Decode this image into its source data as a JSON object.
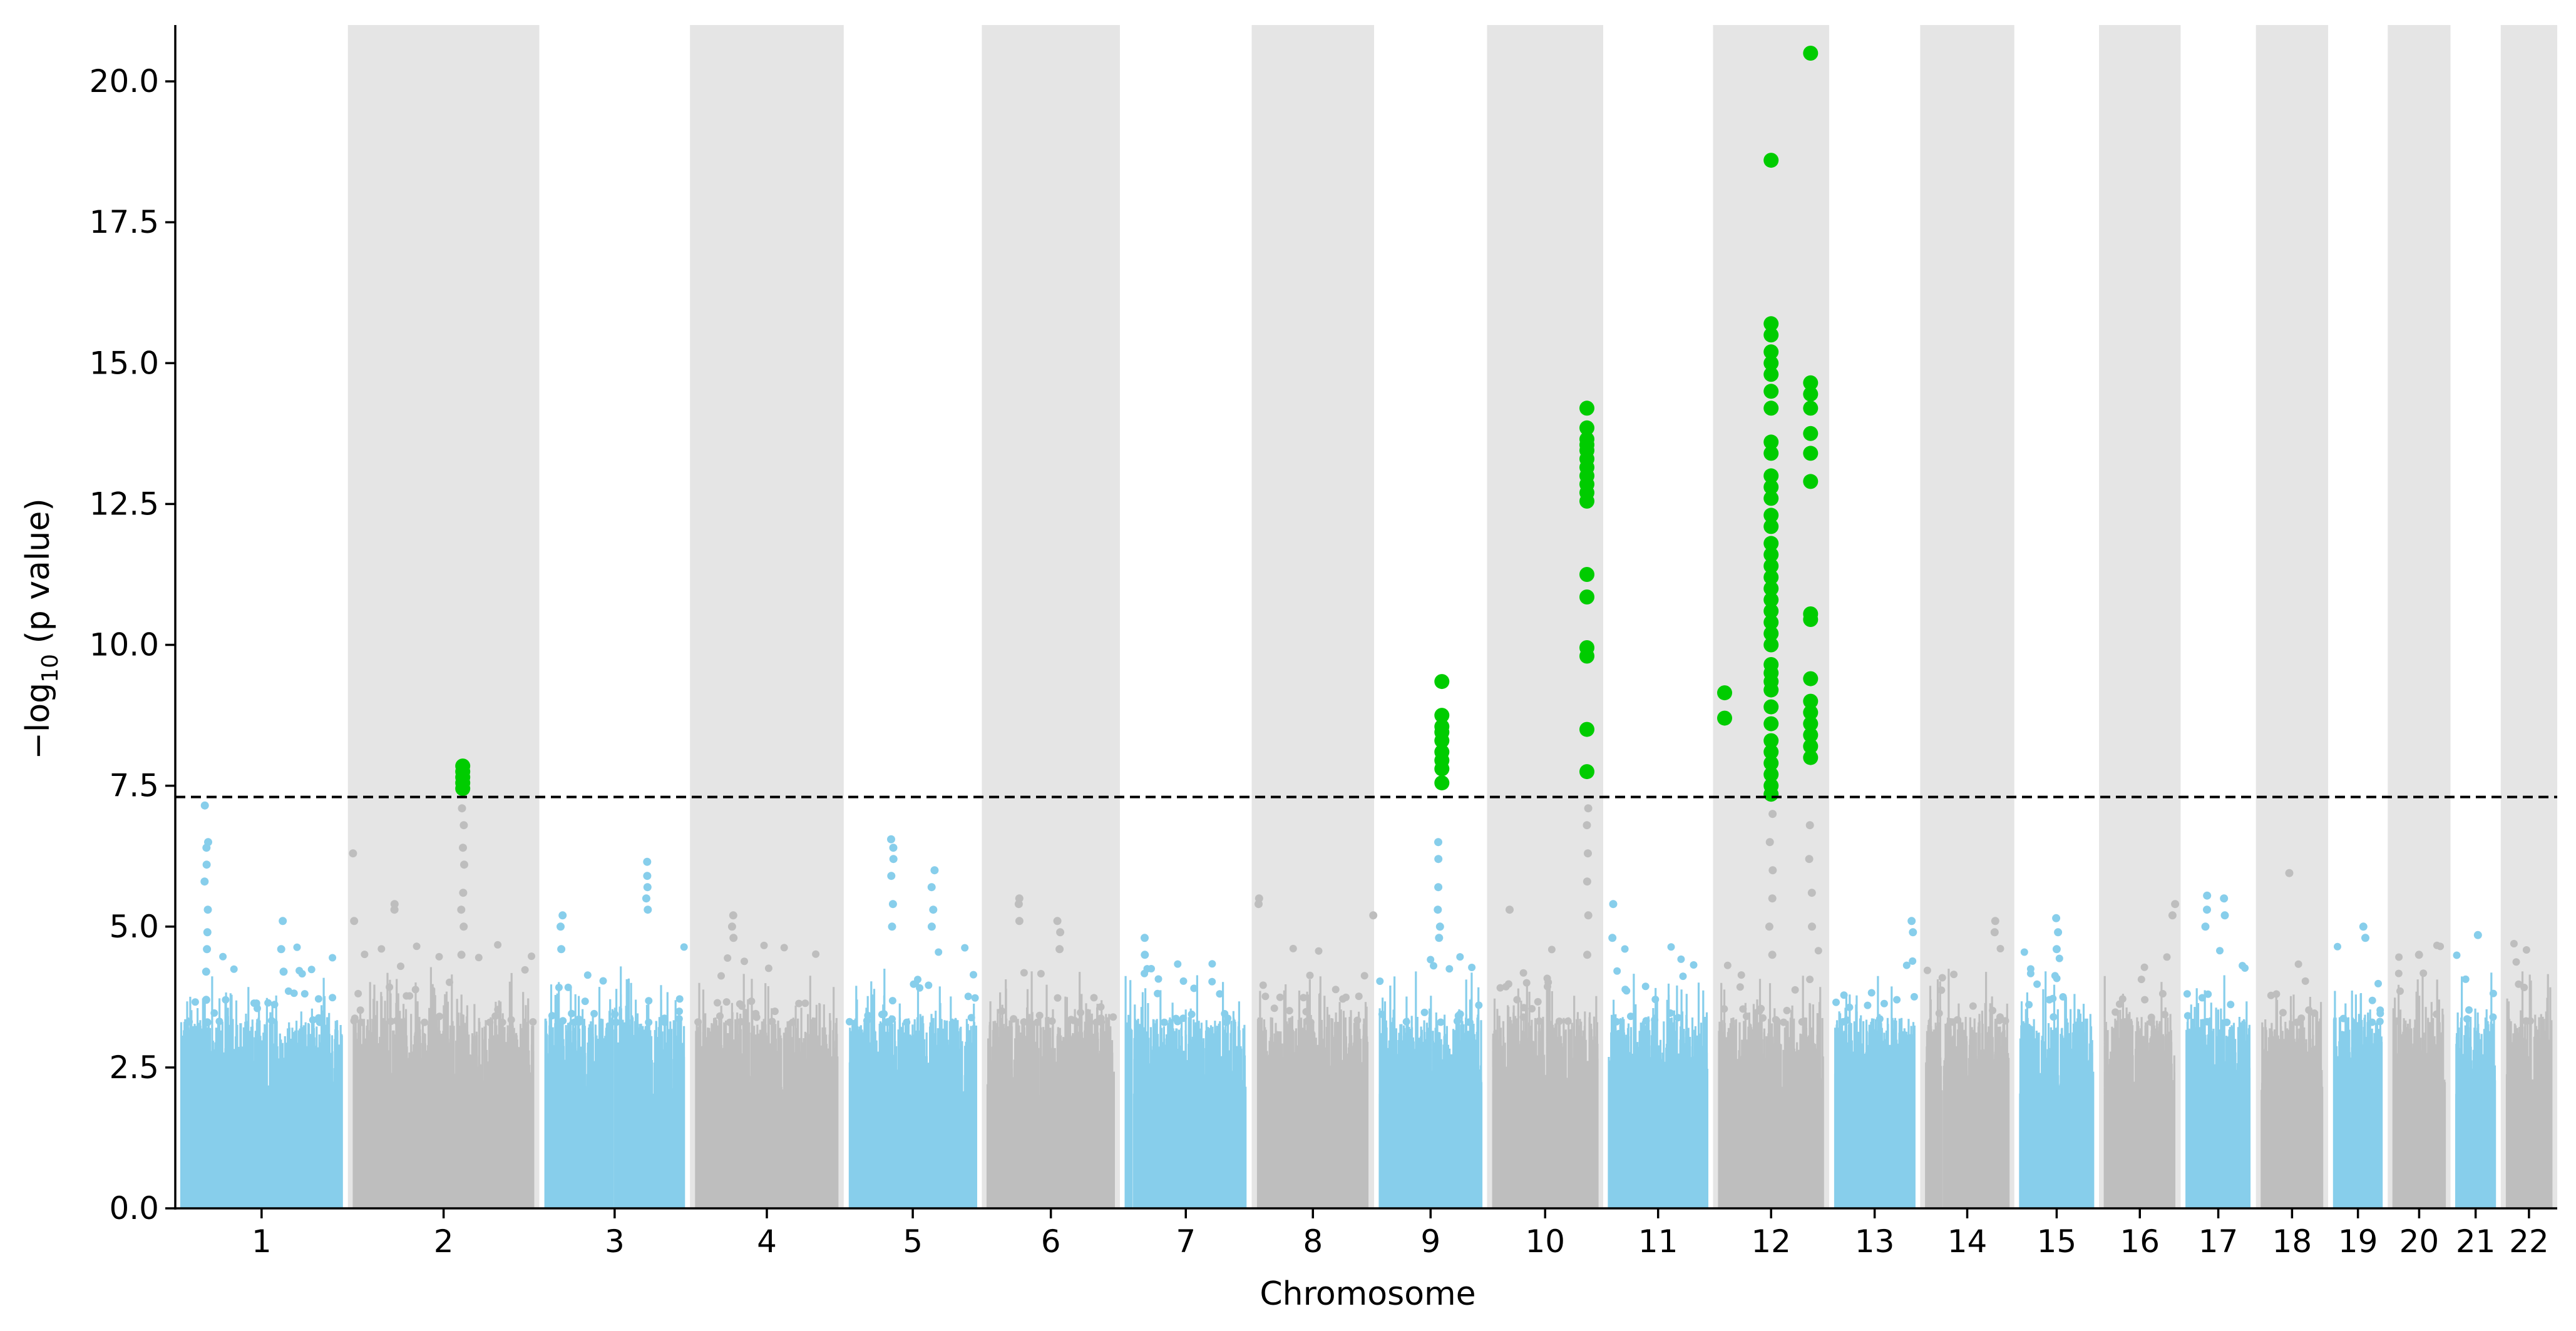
{
  "chart_data": {
    "type": "scatter",
    "subtype": "manhattan",
    "title": "",
    "xlabel": "Chromosome",
    "ylabel": "−log₁₀ (p value)",
    "ylabel_parts": {
      "prefix": "−log",
      "subscript": "10",
      "suffix": " (p value)"
    },
    "ylim": [
      0,
      21
    ],
    "yticks": [
      0.0,
      2.5,
      5.0,
      7.5,
      10.0,
      12.5,
      15.0,
      17.5,
      20.0
    ],
    "ytick_labels": [
      "0.0",
      "2.5",
      "5.0",
      "7.5",
      "10.0",
      "12.5",
      "15.0",
      "17.5",
      "20.0"
    ],
    "threshold": {
      "value": 7.3,
      "style": "dashed",
      "color": "#000000"
    },
    "colors": {
      "odd_chromosomes": "#87CEEB",
      "even_chromosomes": "#BEBEBE",
      "significant": "#00CC00",
      "alt_band": "#E5E5E5",
      "background": "#FFFFFF",
      "axis": "#000000"
    },
    "chromosomes": [
      {
        "label": "1",
        "start": 0.0,
        "end": 5.5,
        "band": false
      },
      {
        "label": "2",
        "start": 5.5,
        "end": 11.6,
        "band": true
      },
      {
        "label": "3",
        "start": 11.6,
        "end": 16.4,
        "band": false
      },
      {
        "label": "4",
        "start": 16.4,
        "end": 21.3,
        "band": true
      },
      {
        "label": "5",
        "start": 21.3,
        "end": 25.7,
        "band": false
      },
      {
        "label": "6",
        "start": 25.7,
        "end": 30.1,
        "band": true
      },
      {
        "label": "7",
        "start": 30.1,
        "end": 34.3,
        "band": false
      },
      {
        "label": "8",
        "start": 34.3,
        "end": 38.2,
        "band": true
      },
      {
        "label": "9",
        "start": 38.2,
        "end": 41.8,
        "band": false
      },
      {
        "label": "10",
        "start": 41.8,
        "end": 45.5,
        "band": true
      },
      {
        "label": "11",
        "start": 45.5,
        "end": 49.0,
        "band": false
      },
      {
        "label": "12",
        "start": 49.0,
        "end": 52.7,
        "band": true
      },
      {
        "label": "13",
        "start": 52.7,
        "end": 55.6,
        "band": false
      },
      {
        "label": "14",
        "start": 55.6,
        "end": 58.6,
        "band": true
      },
      {
        "label": "15",
        "start": 58.6,
        "end": 61.3,
        "band": false
      },
      {
        "label": "16",
        "start": 61.3,
        "end": 63.9,
        "band": true
      },
      {
        "label": "17",
        "start": 63.9,
        "end": 66.3,
        "band": false
      },
      {
        "label": "18",
        "start": 66.3,
        "end": 68.6,
        "band": true
      },
      {
        "label": "19",
        "start": 68.6,
        "end": 70.5,
        "band": false
      },
      {
        "label": "20",
        "start": 70.5,
        "end": 72.5,
        "band": true
      },
      {
        "label": "21",
        "start": 72.5,
        "end": 74.1,
        "band": false
      },
      {
        "label": "22",
        "start": 74.1,
        "end": 75.9,
        "band": true
      }
    ],
    "peaks": [
      {
        "chrom": "1",
        "pos": 0.18,
        "values": [
          2.9,
          3.3,
          3.7,
          4.2,
          4.6,
          4.9,
          5.3,
          5.8,
          6.1,
          6.4,
          6.5,
          7.15
        ]
      },
      {
        "chrom": "1",
        "pos": 0.62,
        "values": [
          4.2,
          4.6,
          5.1
        ]
      },
      {
        "chrom": "2",
        "pos": 0.03,
        "values": [
          5.1,
          6.3
        ]
      },
      {
        "chrom": "2",
        "pos": 0.25,
        "values": [
          5.3,
          5.4
        ]
      },
      {
        "chrom": "2",
        "pos": 0.6,
        "values": [
          4.5,
          5.0,
          5.3,
          5.6,
          6.1,
          6.4,
          6.8,
          7.1
        ]
      },
      {
        "chrom": "3",
        "pos": 0.15,
        "values": [
          4.6,
          5.0,
          5.2
        ]
      },
      {
        "chrom": "3",
        "pos": 0.72,
        "values": [
          5.3,
          5.5,
          5.7,
          5.9,
          6.15
        ]
      },
      {
        "chrom": "4",
        "pos": 0.28,
        "values": [
          4.8,
          5.0,
          5.2
        ]
      },
      {
        "chrom": "5",
        "pos": 0.35,
        "values": [
          5.0,
          5.4,
          5.9,
          6.2,
          6.4,
          6.55
        ]
      },
      {
        "chrom": "5",
        "pos": 0.65,
        "values": [
          5.0,
          5.3,
          5.7,
          6.0
        ]
      },
      {
        "chrom": "6",
        "pos": 0.28,
        "values": [
          5.1,
          5.4,
          5.5
        ]
      },
      {
        "chrom": "6",
        "pos": 0.56,
        "values": [
          4.6,
          4.9,
          5.1
        ]
      },
      {
        "chrom": "7",
        "pos": 0.2,
        "values": [
          4.5,
          4.8
        ]
      },
      {
        "chrom": "8",
        "pos": 0.05,
        "values": [
          5.4,
          5.5
        ]
      },
      {
        "chrom": "8",
        "pos": 0.98,
        "values": [
          5.2
        ]
      },
      {
        "chrom": "9",
        "pos": 0.58,
        "values": [
          4.8,
          5.0,
          5.3,
          5.7,
          6.2,
          6.5
        ]
      },
      {
        "chrom": "10",
        "pos": 0.2,
        "values": [
          5.3
        ]
      },
      {
        "chrom": "10",
        "pos": 0.86,
        "values": [
          4.5,
          5.2,
          5.8,
          6.3,
          6.8,
          7.1
        ]
      },
      {
        "chrom": "11",
        "pos": 0.1,
        "values": [
          4.8,
          5.4
        ]
      },
      {
        "chrom": "12",
        "pos": 0.5,
        "values": [
          4.5,
          5.0,
          5.5,
          6.0,
          6.5,
          7.0
        ]
      },
      {
        "chrom": "12",
        "pos": 0.84,
        "values": [
          5.0,
          5.6,
          6.2,
          6.8
        ]
      },
      {
        "chrom": "13",
        "pos": 0.9,
        "values": [
          4.9,
          5.1
        ]
      },
      {
        "chrom": "14",
        "pos": 0.8,
        "values": [
          4.9,
          5.1
        ]
      },
      {
        "chrom": "15",
        "pos": 0.5,
        "values": [
          4.6,
          4.9,
          5.15
        ]
      },
      {
        "chrom": "16",
        "pos": 0.92,
        "values": [
          5.2,
          5.4
        ]
      },
      {
        "chrom": "17",
        "pos": 0.35,
        "values": [
          5.0,
          5.3,
          5.55
        ]
      },
      {
        "chrom": "17",
        "pos": 0.6,
        "values": [
          5.2,
          5.5
        ]
      },
      {
        "chrom": "18",
        "pos": 0.45,
        "values": [
          5.95
        ]
      },
      {
        "chrom": "19",
        "pos": 0.6,
        "values": [
          4.8,
          5.0
        ]
      },
      {
        "chrom": "20",
        "pos": 0.5,
        "values": [
          4.5
        ]
      },
      {
        "chrom": "21",
        "pos": 0.55,
        "values": [
          4.85
        ]
      }
    ],
    "significant_hits": [
      {
        "chrom": "2",
        "pos": 0.6,
        "values": [
          7.45,
          7.55,
          7.65,
          7.75,
          7.85
        ]
      },
      {
        "chrom": "9",
        "pos": 0.6,
        "values": [
          7.55,
          7.8,
          7.95,
          8.1,
          8.3,
          8.45,
          8.55,
          8.75,
          9.35
        ]
      },
      {
        "chrom": "10",
        "pos": 0.86,
        "values": [
          7.75,
          8.5,
          9.8,
          9.95,
          10.85,
          11.25,
          12.55,
          12.7,
          12.85,
          13.0,
          13.15,
          13.3,
          13.45,
          13.55,
          13.65,
          13.85,
          14.2
        ]
      },
      {
        "chrom": "12",
        "pos": 0.1,
        "values": [
          8.7,
          9.15
        ]
      },
      {
        "chrom": "12",
        "pos": 0.5,
        "values": [
          7.35,
          7.5,
          7.7,
          7.9,
          8.1,
          8.3,
          8.6,
          8.9,
          9.2,
          9.35,
          9.5,
          9.65,
          10.0,
          10.2,
          10.4,
          10.6,
          10.8,
          11.0,
          11.2,
          11.4,
          11.6,
          11.8,
          12.1,
          12.3,
          12.6,
          12.8,
          13.0,
          13.4,
          13.6,
          14.2,
          14.5,
          14.8,
          15.0,
          15.2,
          15.5,
          15.7,
          18.6
        ]
      },
      {
        "chrom": "12",
        "pos": 0.84,
        "values": [
          8.0,
          8.2,
          8.4,
          8.6,
          8.8,
          9.0,
          9.4,
          10.45,
          10.55,
          12.9,
          13.4,
          13.75,
          14.2,
          14.45,
          14.65,
          20.5
        ]
      }
    ]
  }
}
